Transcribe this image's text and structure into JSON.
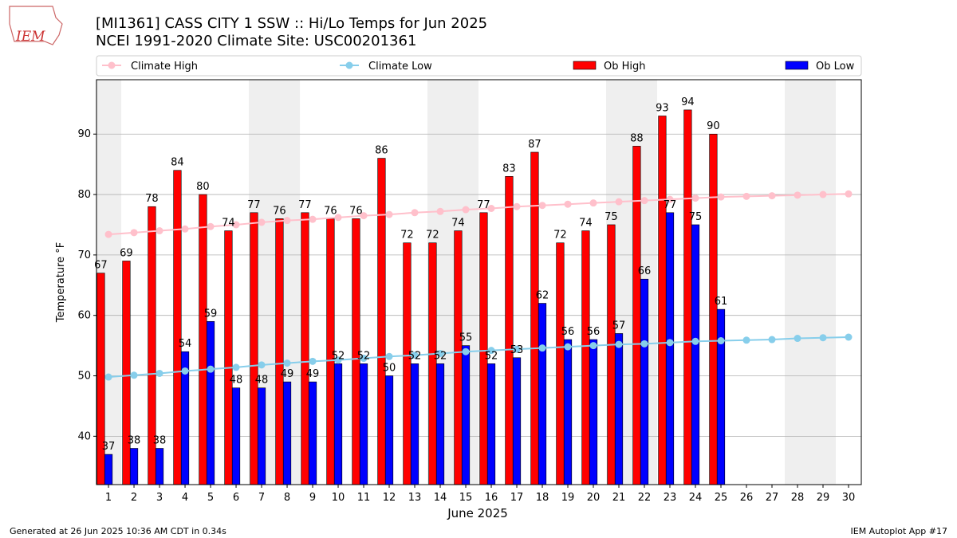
{
  "chart_data": {
    "type": "bar_line",
    "title": "[MI1361] CASS CITY 1 SSW :: Hi/Lo Temps for Jun 2025",
    "subtitle": "NCEI 1991-2020 Climate Site: USC00201361",
    "logo": "IEM",
    "x_label": "June 2025",
    "y_label": "Temperature $^\\circ$F",
    "y_label_print": "Temperature °F",
    "footer_left": "Generated at 26 Jun 2025 10:36 AM CDT in 0.34s",
    "footer_right": "IEM Autoplot App #17",
    "x": [
      1,
      2,
      3,
      4,
      5,
      6,
      7,
      8,
      9,
      10,
      11,
      12,
      13,
      14,
      15,
      16,
      17,
      18,
      19,
      20,
      21,
      22,
      23,
      24,
      25,
      26,
      27,
      28,
      29,
      30
    ],
    "xlim": [
      0.53,
      30.5
    ],
    "xticks": [
      1,
      2,
      3,
      4,
      5,
      6,
      7,
      8,
      9,
      10,
      11,
      12,
      13,
      14,
      15,
      16,
      17,
      18,
      19,
      20,
      21,
      22,
      23,
      24,
      25,
      26,
      27,
      28,
      29,
      30
    ],
    "ylim": [
      32,
      99
    ],
    "yticks": [
      40,
      50,
      60,
      70,
      80,
      90
    ],
    "grid": true,
    "shaded_days": [
      1,
      7,
      8,
      14,
      15,
      21,
      22,
      28,
      29
    ],
    "shade_color": "#efefef",
    "legend_position": "top",
    "series": [
      {
        "name": "Climate High",
        "kind": "line",
        "color": "#ffc0cb",
        "values": [
          73.4,
          73.7,
          74.0,
          74.3,
          74.7,
          75.0,
          75.4,
          75.7,
          75.9,
          76.2,
          76.5,
          76.7,
          77.0,
          77.2,
          77.5,
          77.7,
          78.0,
          78.2,
          78.4,
          78.6,
          78.8,
          79.0,
          79.2,
          79.4,
          79.6,
          79.7,
          79.8,
          79.9,
          80.0,
          80.1
        ]
      },
      {
        "name": "Climate Low",
        "kind": "line",
        "color": "#87ceeb",
        "values": [
          49.8,
          50.1,
          50.4,
          50.8,
          51.1,
          51.4,
          51.8,
          52.1,
          52.4,
          52.6,
          52.9,
          53.2,
          53.4,
          53.7,
          54.0,
          54.2,
          54.4,
          54.6,
          54.8,
          55.0,
          55.2,
          55.3,
          55.5,
          55.7,
          55.8,
          55.9,
          56.0,
          56.2,
          56.3,
          56.4
        ]
      },
      {
        "name": "Ob High",
        "kind": "bar",
        "color": "#ff0000",
        "values": [
          67,
          69,
          78,
          84,
          80,
          74,
          77,
          76,
          77,
          76,
          76,
          86,
          72,
          72,
          74,
          77,
          83,
          87,
          72,
          74,
          75,
          88,
          93,
          94,
          90,
          null,
          null,
          null,
          null,
          null
        ]
      },
      {
        "name": "Ob Low",
        "kind": "bar",
        "color": "#0000ff",
        "values": [
          37,
          38,
          38,
          54,
          59,
          48,
          48,
          49,
          49,
          52,
          52,
          50,
          52,
          52,
          55,
          52,
          53,
          62,
          56,
          56,
          57,
          66,
          77,
          75,
          61,
          null,
          null,
          null,
          null,
          null
        ]
      }
    ]
  }
}
